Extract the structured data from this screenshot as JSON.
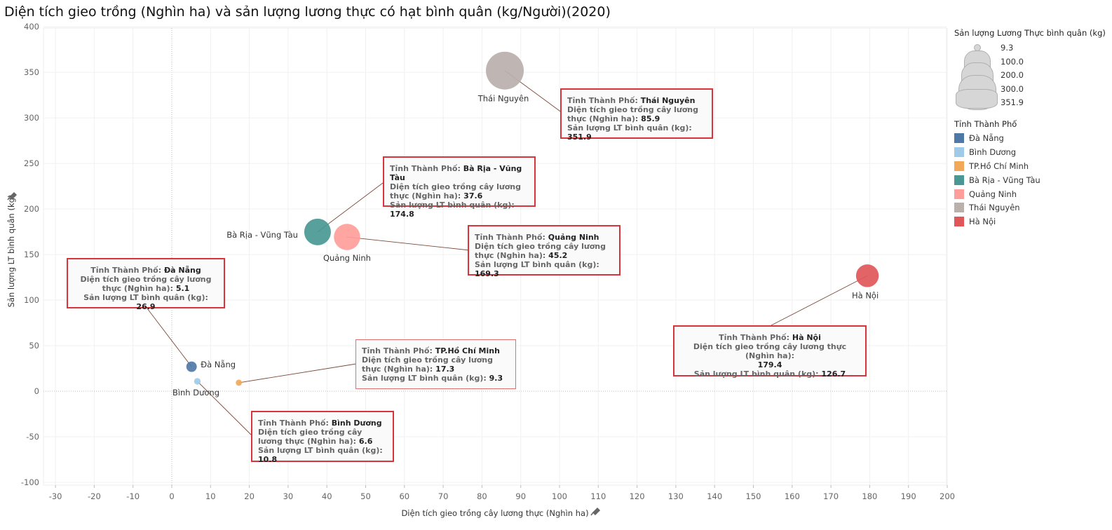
{
  "chart_data": {
    "type": "scatter",
    "title": "Diện tích gieo trồng (Nghìn ha) và sản lượng lương thực có hạt bình quân (kg/Người)(2020)",
    "xlabel": "Diện tích gieo trồng cây lương thực (Nghìn ha)",
    "ylabel": "Sản lượng LT bình quân (kg)",
    "xlim": [
      -30,
      200
    ],
    "ylim": [
      -100,
      400
    ],
    "x_ticks": [
      -30,
      -20,
      -10,
      0,
      10,
      20,
      30,
      40,
      50,
      60,
      70,
      80,
      90,
      100,
      110,
      120,
      130,
      140,
      150,
      160,
      170,
      180,
      190,
      200
    ],
    "y_ticks": [
      -100,
      -50,
      0,
      50,
      100,
      150,
      200,
      250,
      300,
      350,
      400
    ],
    "grid": true,
    "legend_placement": "right",
    "points": [
      {
        "name": "Đà Nẵng",
        "x": 5.1,
        "y": 26.9,
        "color": "#4e79a7"
      },
      {
        "name": "Bình Dương",
        "x": 6.6,
        "y": 10.8,
        "color": "#a0cbe8"
      },
      {
        "name": "TP.Hồ Chí Minh",
        "x": 17.3,
        "y": 9.3,
        "color": "#f1a859"
      },
      {
        "name": "Bà Rịa - Vũng Tàu",
        "x": 37.6,
        "y": 174.8,
        "color": "#499894"
      },
      {
        "name": "Quảng Ninh",
        "x": 45.2,
        "y": 169.3,
        "color": "#ff9d9a"
      },
      {
        "name": "Thái Nguyên",
        "x": 85.9,
        "y": 351.9,
        "color": "#bab0ac"
      },
      {
        "name": "Hà Nội",
        "x": 179.4,
        "y": 126.7,
        "color": "#e15759"
      }
    ],
    "point_labels": [
      {
        "text": "Đà Nẵng"
      },
      {
        "text": "Bình Dương"
      },
      {
        "text": "Bà Rịa - Vũng Tàu"
      },
      {
        "text": "Quảng Ninh"
      },
      {
        "text": "Thái Nguyên"
      },
      {
        "text": "Hà Nội"
      }
    ],
    "size_legend": {
      "title": "Sản lượng Lương Thực bình quân (kg)",
      "values": [
        "9.3",
        "100.0",
        "200.0",
        "300.0",
        "351.9"
      ]
    },
    "color_legend": {
      "title": "Tỉnh Thành Phố",
      "items": [
        {
          "label": "Đà Nẵng",
          "color": "#4e79a7"
        },
        {
          "label": "Bình Dương",
          "color": "#a0cbe8"
        },
        {
          "label": "TP.Hồ Chí Minh",
          "color": "#f1a859"
        },
        {
          "label": "Bà Rịa - Vũng Tàu",
          "color": "#499894"
        },
        {
          "label": "Quảng Ninh",
          "color": "#ff9d9a"
        },
        {
          "label": "Thái Nguyên",
          "color": "#bab0ac"
        },
        {
          "label": "Hà Nội",
          "color": "#e15759"
        }
      ]
    }
  },
  "callouts": {
    "common": {
      "tinh_label": "Tỉnh Thành Phố:",
      "dt_label": "Diện tích gieo trồng cây lương thực (Nghìn ha):",
      "sl_label": "Sản lượng LT bình quân (kg):"
    },
    "thai_nguyen": {
      "name": "Thái Nguyên",
      "dt": "85.9",
      "sl": "351.9"
    },
    "ba_ria": {
      "name": "Bà Rịa - Vũng Tàu",
      "dt": "37.6",
      "sl": "174.8"
    },
    "quang_ninh": {
      "name": "Quảng Ninh",
      "dt": "45.2",
      "sl": "169.3"
    },
    "da_nang": {
      "name": "Đà Nẵng",
      "dt": "5.1",
      "sl": "26.9"
    },
    "ha_noi": {
      "name": "Hà Nội",
      "dt": "179.4",
      "sl": "126.7"
    },
    "hcm": {
      "name": "TP.Hồ Chí Minh",
      "dt": "17.3",
      "sl": "9.3"
    },
    "binh_duong": {
      "name": "Bình Dương",
      "dt": "6.6",
      "sl": "10.8"
    }
  }
}
